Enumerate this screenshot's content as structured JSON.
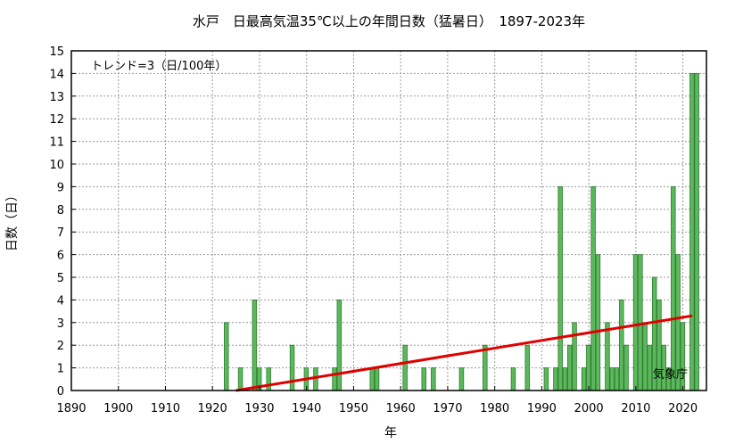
{
  "chart_data": {
    "type": "bar",
    "title": "水戸　日最高気温35℃以上の年間日数（猛暑日）　1897-2023年",
    "xlabel": "年",
    "ylabel": "日数（日）",
    "xlim": [
      1890,
      2025
    ],
    "ylim": [
      0,
      15
    ],
    "x_ticks": [
      1890,
      1900,
      1910,
      1920,
      1930,
      1940,
      1950,
      1960,
      1970,
      1980,
      1990,
      2000,
      2010,
      2020
    ],
    "y_ticks": [
      0,
      1,
      2,
      3,
      4,
      5,
      6,
      7,
      8,
      9,
      10,
      11,
      12,
      13,
      14,
      15
    ],
    "grid": true,
    "bar_color": "#5cb85c",
    "trend_color": "#e00000",
    "trend_label": "トレンド=3（日/100年）",
    "source": "気象庁",
    "trend_line": {
      "x": [
        1925,
        2022
      ],
      "y": [
        0,
        3.3
      ]
    },
    "years": [
      1897,
      1898,
      1899,
      1900,
      1901,
      1902,
      1903,
      1904,
      1905,
      1906,
      1907,
      1908,
      1909,
      1910,
      1911,
      1912,
      1913,
      1914,
      1915,
      1916,
      1917,
      1918,
      1919,
      1920,
      1921,
      1922,
      1923,
      1924,
      1925,
      1926,
      1927,
      1928,
      1929,
      1930,
      1931,
      1932,
      1933,
      1934,
      1935,
      1936,
      1937,
      1938,
      1939,
      1940,
      1941,
      1942,
      1943,
      1944,
      1945,
      1946,
      1947,
      1948,
      1949,
      1950,
      1951,
      1952,
      1953,
      1954,
      1955,
      1956,
      1957,
      1958,
      1959,
      1960,
      1961,
      1962,
      1963,
      1964,
      1965,
      1966,
      1967,
      1968,
      1969,
      1970,
      1971,
      1972,
      1973,
      1974,
      1975,
      1976,
      1977,
      1978,
      1979,
      1980,
      1981,
      1982,
      1983,
      1984,
      1985,
      1986,
      1987,
      1988,
      1989,
      1990,
      1991,
      1992,
      1993,
      1994,
      1995,
      1996,
      1997,
      1998,
      1999,
      2000,
      2001,
      2002,
      2003,
      2004,
      2005,
      2006,
      2007,
      2008,
      2009,
      2010,
      2011,
      2012,
      2013,
      2014,
      2015,
      2016,
      2017,
      2018,
      2019,
      2020,
      2021,
      2022,
      2023
    ],
    "values": [
      0,
      0,
      0,
      0,
      0,
      0,
      0,
      0,
      0,
      0,
      0,
      0,
      0,
      0,
      0,
      0,
      0,
      0,
      0,
      0,
      0,
      0,
      0,
      0,
      0,
      0,
      3,
      0,
      0,
      1,
      0,
      0,
      4,
      1,
      0,
      1,
      0,
      0,
      0,
      0,
      2,
      0,
      0,
      1,
      0,
      1,
      0,
      0,
      0,
      1,
      4,
      0,
      0,
      0,
      0,
      0,
      0,
      1,
      1,
      0,
      0,
      0,
      0,
      0,
      2,
      0,
      0,
      0,
      1,
      0,
      1,
      0,
      0,
      0,
      0,
      0,
      1,
      0,
      0,
      0,
      0,
      2,
      0,
      0,
      0,
      0,
      0,
      1,
      0,
      0,
      2,
      0,
      0,
      0,
      1,
      0,
      1,
      9,
      1,
      2,
      3,
      0,
      1,
      2,
      9,
      6,
      0,
      3,
      1,
      1,
      4,
      2,
      0,
      6,
      6,
      3,
      2,
      5,
      4,
      2,
      1,
      9,
      6,
      3,
      0,
      14,
      14
    ]
  }
}
